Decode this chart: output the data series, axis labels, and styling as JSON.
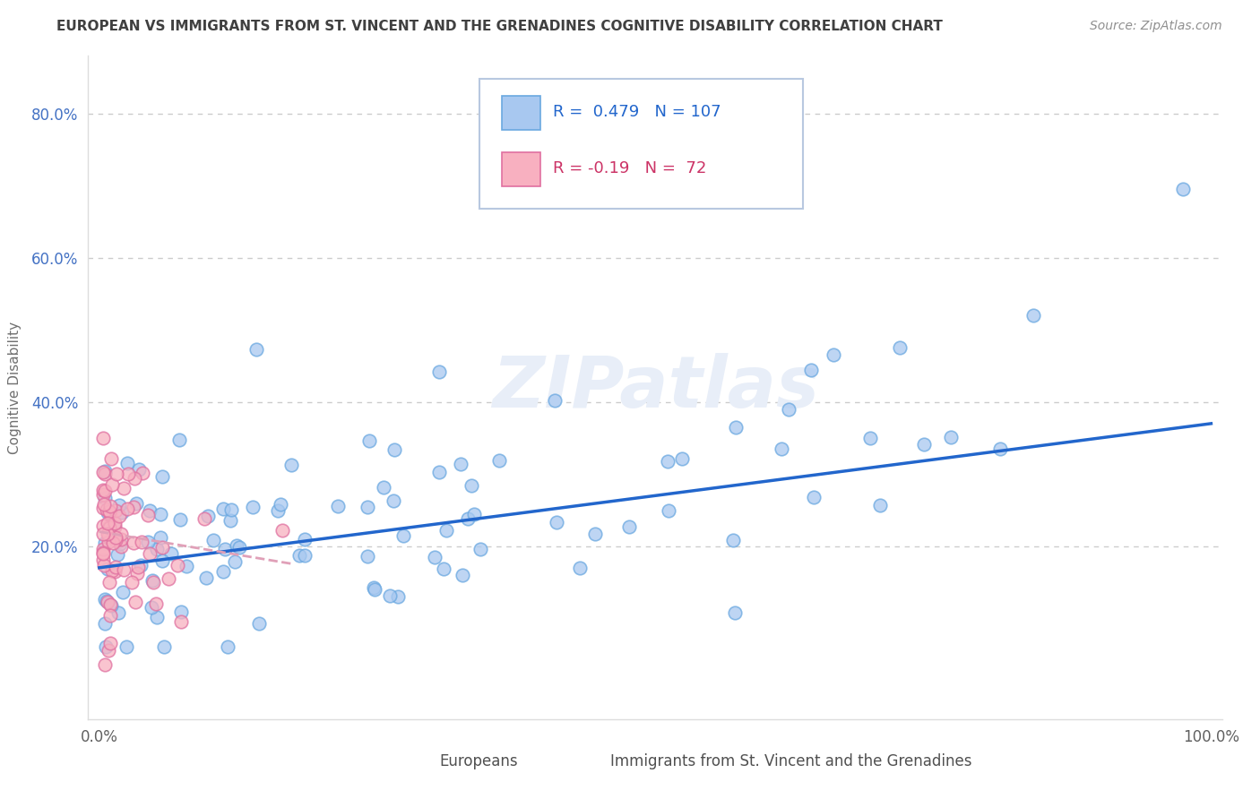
{
  "title": "EUROPEAN VS IMMIGRANTS FROM ST. VINCENT AND THE GRENADINES COGNITIVE DISABILITY CORRELATION CHART",
  "source": "Source: ZipAtlas.com",
  "ylabel": "Cognitive Disability",
  "xlabel": "",
  "xlim": [
    -0.01,
    1.01
  ],
  "ylim": [
    -0.04,
    0.88
  ],
  "yticks": [
    0.2,
    0.4,
    0.6,
    0.8
  ],
  "ytick_labels": [
    "20.0%",
    "40.0%",
    "60.0%",
    "80.0%"
  ],
  "xticks": [
    0.0,
    1.0
  ],
  "xtick_labels": [
    "0.0%",
    "100.0%"
  ],
  "R_european": 0.479,
  "N_european": 107,
  "R_immigrant": -0.19,
  "N_immigrant": 72,
  "european_color": "#a8c8f0",
  "european_edge_color": "#6aa8e0",
  "immigrant_color": "#f8b0c0",
  "immigrant_edge_color": "#e070a0",
  "trendline_european_color": "#2266cc",
  "trendline_immigrant_color": "#e0a0b8",
  "title_color": "#404040",
  "source_color": "#909090",
  "grid_color": "#cccccc",
  "background_color": "#ffffff",
  "ytick_color": "#4472c4",
  "xtick_color": "#606060",
  "legend_text_blue": "#2266cc",
  "legend_text_pink": "#cc3366",
  "watermark_color": "#e8eef8",
  "trend_eur_x0": 0.0,
  "trend_eur_y0": 0.17,
  "trend_eur_x1": 1.0,
  "trend_eur_y1": 0.37,
  "trend_imm_x0": 0.0,
  "trend_imm_y0": 0.22,
  "trend_imm_x1": 0.175,
  "trend_imm_y1": 0.175
}
